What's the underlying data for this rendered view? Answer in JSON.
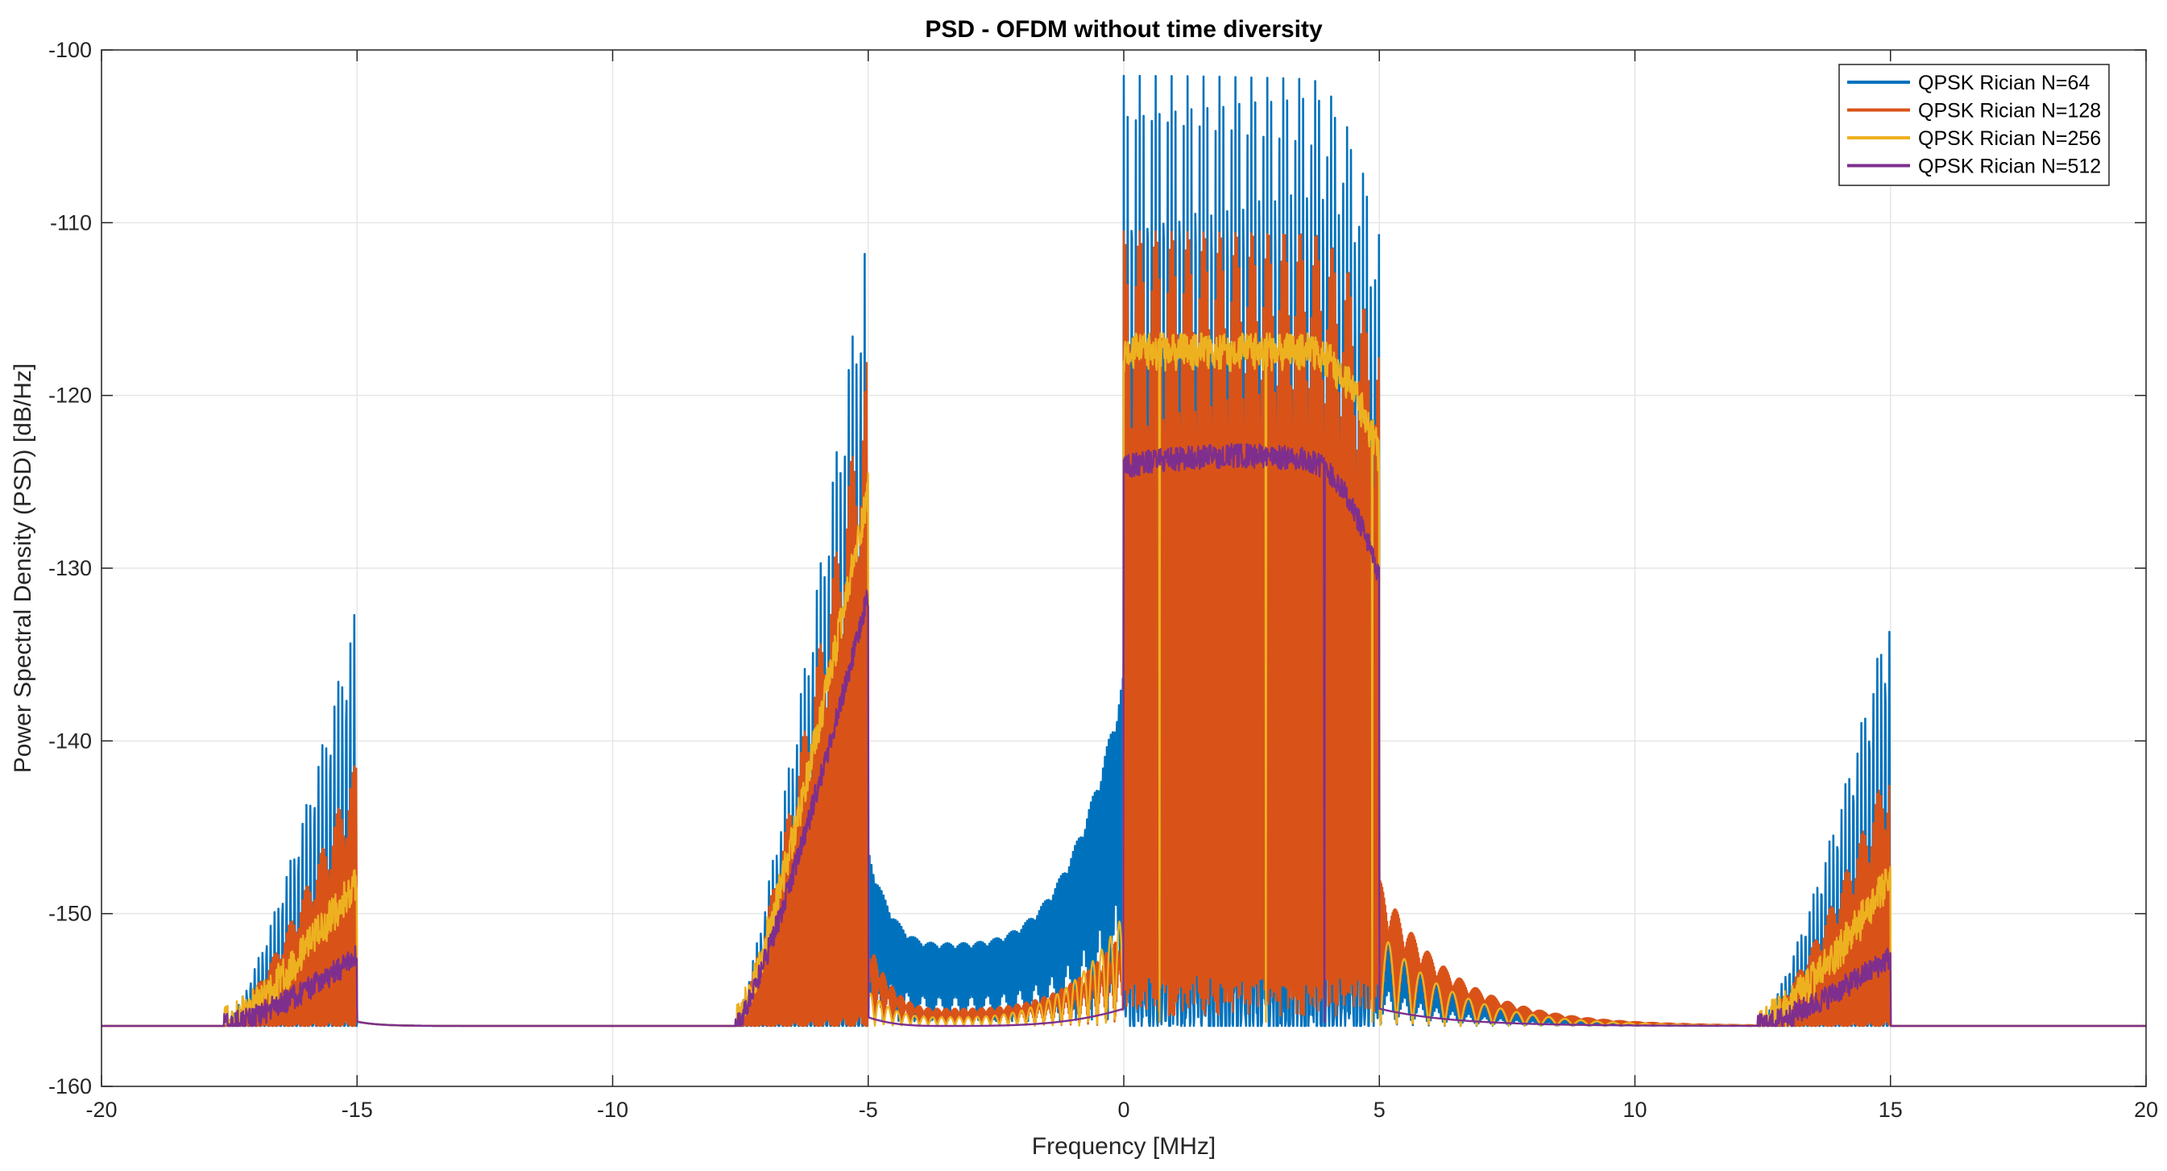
{
  "chart_data": {
    "type": "line",
    "title": "PSD - OFDM without time diversity",
    "xlabel": "Frequency [MHz]",
    "ylabel": "Power Spectral Density (PSD) [dB/Hz]",
    "xlim": [
      -20,
      20
    ],
    "ylim": [
      -160,
      -100
    ],
    "xticks": [
      -20,
      -15,
      -10,
      -5,
      0,
      5,
      10,
      15,
      20
    ],
    "yticks": [
      -160,
      -150,
      -140,
      -130,
      -120,
      -110,
      -100
    ],
    "grid": true,
    "legend_position": "top-right",
    "noise_floor": -156.5,
    "series": [
      {
        "name": "QPSK Rician N=64",
        "color": "#0072BD",
        "carriers": 64,
        "main_band_peak": -101.5,
        "main_band_trough": -156,
        "left_sideband_peak": -109.5,
        "right_sideband_peak": -132,
        "outer_left_peak": -132,
        "gap_floor_min": -151.8,
        "gap_edge_near_zero": -136.5
      },
      {
        "name": "QPSK Rician N=128",
        "color": "#D95319",
        "carriers": 128,
        "main_band_peak": -110.5,
        "main_band_trough": -155,
        "left_sideband_peak": -117.5,
        "right_sideband_peak": -141,
        "outer_left_peak": -141,
        "gap_floor_min": -155.5,
        "gap_edge_near_zero": -151
      },
      {
        "name": "QPSK Rician N=256",
        "color": "#EDB120",
        "carriers": 256,
        "main_band_peak": -117.5,
        "main_band_trough": -156,
        "left_sideband_peak": -125.5,
        "right_sideband_peak": -148,
        "outer_left_peak": -148,
        "gap_floor_min": -156,
        "gap_edge_near_zero": -150
      },
      {
        "name": "QPSK Rician N=512",
        "color": "#7E2F8E",
        "carriers": 512,
        "main_band_peak": -123.5,
        "main_band_trough": -156.5,
        "left_sideband_peak": -131.5,
        "right_sideband_peak": -152.5,
        "outer_left_peak": -152.5,
        "gap_floor_min": -156.5,
        "gap_edge_near_zero": -155.5
      }
    ]
  }
}
